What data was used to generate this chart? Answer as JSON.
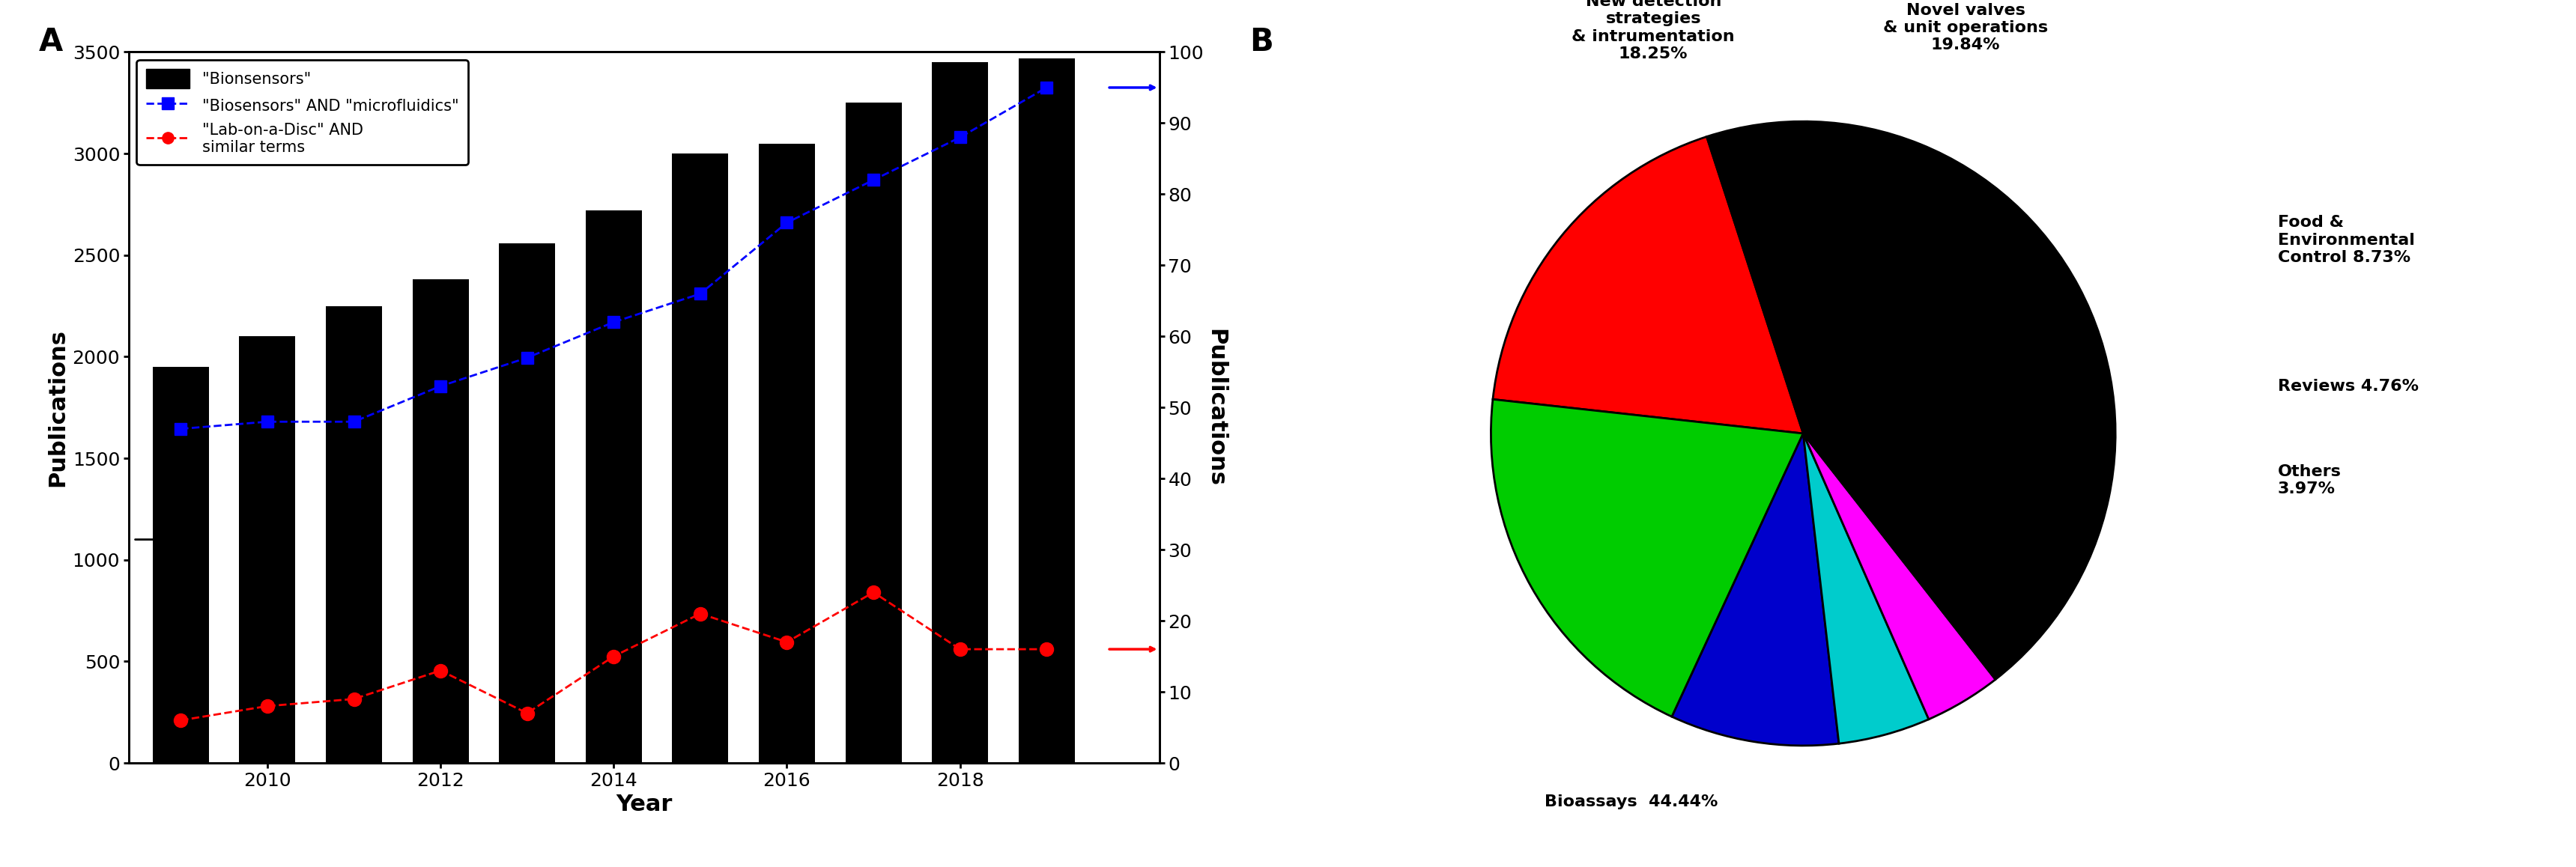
{
  "years": [
    2009,
    2010,
    2011,
    2012,
    2013,
    2014,
    2015,
    2016,
    2017,
    2018,
    2019
  ],
  "bar_values": [
    1950,
    2100,
    2250,
    2380,
    2560,
    2720,
    3000,
    3050,
    3250,
    3450,
    3470
  ],
  "blue_values": [
    47,
    48,
    48,
    53,
    57,
    62,
    66,
    76,
    82,
    88,
    95
  ],
  "red_values": [
    6,
    8,
    9,
    13,
    7,
    15,
    21,
    17,
    24,
    16,
    16
  ],
  "bar_color": "#000000",
  "blue_color": "#0000FF",
  "red_color": "#FF0000",
  "left_ylim": [
    0,
    3500
  ],
  "right_ylim": [
    0,
    100
  ],
  "left_yticks": [
    0,
    500,
    1000,
    1500,
    2000,
    2500,
    3000,
    3500
  ],
  "right_yticks": [
    0,
    10,
    20,
    30,
    40,
    50,
    60,
    70,
    80,
    90,
    100
  ],
  "xlabel": "Year",
  "ylabel_left": "Publications",
  "ylabel_right": "Publications",
  "legend_bar": "\"Bionsensors\"",
  "legend_blue": "\"Biosensors\" AND \"microfluidics\"",
  "legend_red": "\"Lab-on-a-Disc\" AND\nsimilar terms",
  "panel_a_label": "A",
  "panel_b_label": "B",
  "pie_values": [
    18.25,
    19.84,
    8.73,
    4.76,
    3.97,
    44.44
  ],
  "pie_colors": [
    "#FF0000",
    "#00CC00",
    "#0000CC",
    "#00CCCC",
    "#FF00FF",
    "#000000"
  ],
  "pie_startangle": 108
}
